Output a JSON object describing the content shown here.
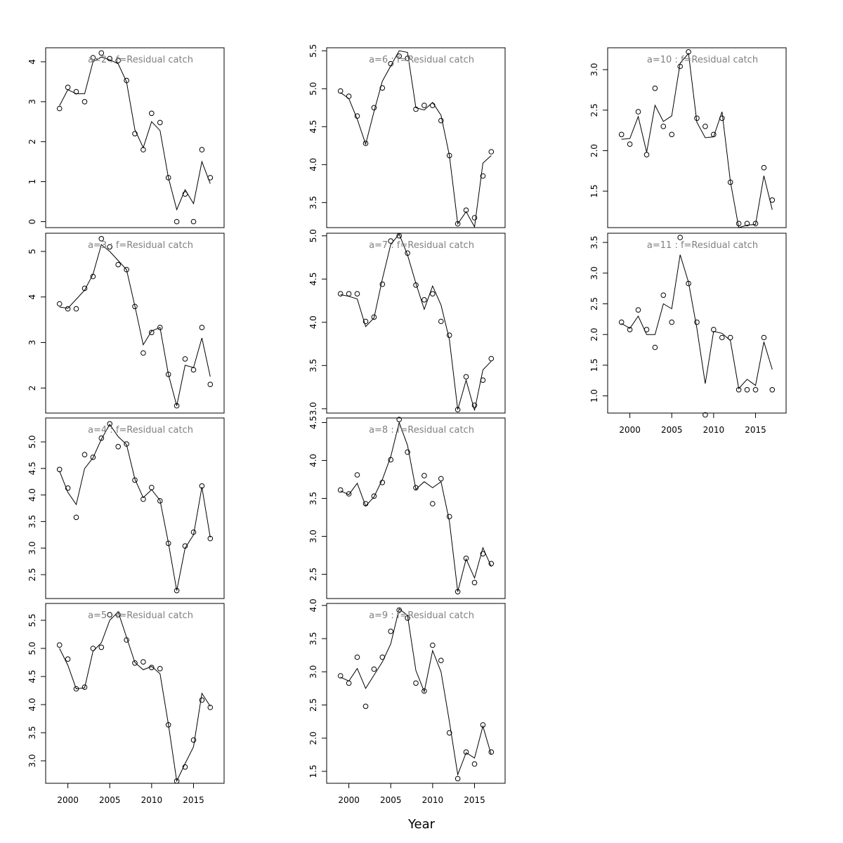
{
  "figure": {
    "xlabel": "Year"
  },
  "chart_data": [
    {
      "type": "scatter",
      "title": "a=2 : f=Residual catch",
      "x": [
        1999,
        2000,
        2001,
        2002,
        2003,
        2004,
        2005,
        2006,
        2007,
        2008,
        2009,
        2010,
        2011,
        2012,
        2013,
        2014,
        2015,
        2016,
        2017
      ],
      "observed": [
        2.83,
        3.36,
        3.25,
        3.0,
        4.1,
        4.22,
        4.08,
        4.03,
        3.53,
        2.2,
        1.8,
        2.71,
        2.48,
        1.1,
        0.0,
        0.69,
        0.0,
        1.8,
        1.1
      ],
      "fitted": [
        2.9,
        3.3,
        3.2,
        3.2,
        4.0,
        4.12,
        4.05,
        3.95,
        3.5,
        2.3,
        1.85,
        2.5,
        2.28,
        1.1,
        0.3,
        0.8,
        0.45,
        1.5,
        0.95
      ],
      "ylim": [
        -0.15,
        4.35
      ],
      "yticks": [
        0,
        1,
        2,
        3,
        4
      ]
    },
    {
      "type": "scatter",
      "title": "a=3 : f=Residual catch",
      "x": [
        1999,
        2000,
        2001,
        2002,
        2003,
        2004,
        2005,
        2006,
        2007,
        2008,
        2009,
        2010,
        2011,
        2012,
        2013,
        2014,
        2015,
        2016,
        2017
      ],
      "observed": [
        3.85,
        3.74,
        3.74,
        4.19,
        4.45,
        5.28,
        5.1,
        4.71,
        4.6,
        3.79,
        2.77,
        3.22,
        3.33,
        2.3,
        1.61,
        2.64,
        2.4,
        3.33,
        2.08
      ],
      "fitted": [
        3.78,
        3.75,
        3.95,
        4.15,
        4.5,
        5.15,
        5.0,
        4.8,
        4.6,
        3.8,
        2.95,
        3.25,
        3.33,
        2.3,
        1.61,
        2.5,
        2.45,
        3.1,
        2.25
      ],
      "ylim": [
        1.45,
        5.4
      ],
      "yticks": [
        2,
        3,
        4,
        5
      ]
    },
    {
      "type": "scatter",
      "title": "a=4 : f=Residual catch",
      "x": [
        1999,
        2000,
        2001,
        2002,
        2003,
        2004,
        2005,
        2006,
        2007,
        2008,
        2009,
        2010,
        2011,
        2012,
        2013,
        2014,
        2015,
        2016,
        2017
      ],
      "observed": [
        4.48,
        4.13,
        3.58,
        4.76,
        4.71,
        5.07,
        5.34,
        4.91,
        4.96,
        4.28,
        3.92,
        4.14,
        3.89,
        3.09,
        2.2,
        3.04,
        3.3,
        4.17,
        3.18
      ],
      "fitted": [
        4.45,
        4.05,
        3.82,
        4.5,
        4.7,
        5.05,
        5.33,
        5.1,
        4.95,
        4.3,
        3.95,
        4.1,
        3.9,
        3.1,
        2.2,
        3.0,
        3.25,
        4.15,
        3.2
      ],
      "ylim": [
        2.05,
        5.45
      ],
      "yticks": [
        2.5,
        3.0,
        3.5,
        4.0,
        4.5,
        5.0
      ]
    },
    {
      "type": "scatter",
      "title": "a=5 : f=Residual catch",
      "x": [
        1999,
        2000,
        2001,
        2002,
        2003,
        2004,
        2005,
        2006,
        2007,
        2008,
        2009,
        2010,
        2011,
        2012,
        2013,
        2014,
        2015,
        2016,
        2017
      ],
      "observed": [
        5.06,
        4.81,
        4.28,
        4.31,
        5.0,
        5.02,
        5.6,
        5.6,
        5.15,
        4.74,
        4.76,
        4.66,
        4.64,
        3.64,
        2.64,
        2.89,
        3.37,
        4.08,
        3.95
      ],
      "fitted": [
        5.0,
        4.7,
        4.28,
        4.3,
        4.95,
        5.1,
        5.5,
        5.65,
        5.2,
        4.75,
        4.62,
        4.68,
        4.55,
        3.65,
        2.64,
        2.95,
        3.25,
        4.2,
        3.97
      ],
      "ylim": [
        2.6,
        5.8
      ],
      "yticks": [
        3.0,
        3.5,
        4.0,
        4.5,
        5.0,
        5.5
      ]
    },
    {
      "type": "scatter",
      "title": "a=6 : f=Residual catch",
      "x": [
        1999,
        2000,
        2001,
        2002,
        2003,
        2004,
        2005,
        2006,
        2007,
        2008,
        2009,
        2010,
        2011,
        2012,
        2013,
        2014,
        2015,
        2016,
        2017
      ],
      "observed": [
        4.97,
        4.9,
        4.64,
        4.28,
        4.75,
        5.01,
        5.33,
        5.43,
        5.4,
        4.73,
        4.78,
        4.78,
        4.58,
        4.12,
        3.22,
        3.4,
        3.3,
        3.85,
        4.17
      ],
      "fitted": [
        4.95,
        4.87,
        4.6,
        4.27,
        4.7,
        5.1,
        5.3,
        5.5,
        5.48,
        4.75,
        4.72,
        4.82,
        4.65,
        4.12,
        3.22,
        3.38,
        3.18,
        4.02,
        4.12
      ],
      "ylim": [
        3.17,
        5.54
      ],
      "yticks": [
        3.5,
        4.0,
        4.5,
        5.0,
        5.5
      ]
    },
    {
      "type": "scatter",
      "title": "a=7 : f=Residual catch",
      "x": [
        1999,
        2000,
        2001,
        2002,
        2003,
        2004,
        2005,
        2006,
        2007,
        2008,
        2009,
        2010,
        2011,
        2012,
        2013,
        2014,
        2015,
        2016,
        2017
      ],
      "observed": [
        4.33,
        4.33,
        4.33,
        4.01,
        4.06,
        4.44,
        4.94,
        5.0,
        4.8,
        4.43,
        4.26,
        4.33,
        4.01,
        3.85,
        2.99,
        3.37,
        3.04,
        3.33,
        3.58
      ],
      "fitted": [
        4.32,
        4.3,
        4.27,
        3.95,
        4.05,
        4.5,
        4.9,
        5.02,
        4.78,
        4.45,
        4.15,
        4.42,
        4.2,
        3.8,
        2.99,
        3.33,
        2.98,
        3.45,
        3.55
      ],
      "ylim": [
        2.95,
        5.03
      ],
      "yticks": [
        3.0,
        3.5,
        4.0,
        4.5,
        5.0
      ]
    },
    {
      "type": "scatter",
      "title": "a=8 : f=Residual catch",
      "x": [
        1999,
        2000,
        2001,
        2002,
        2003,
        2004,
        2005,
        2006,
        2007,
        2008,
        2009,
        2010,
        2011,
        2012,
        2013,
        2014,
        2015,
        2016,
        2017
      ],
      "observed": [
        3.61,
        3.56,
        3.81,
        3.43,
        3.53,
        3.71,
        4.01,
        4.54,
        4.11,
        3.64,
        3.8,
        3.43,
        3.76,
        3.26,
        2.27,
        2.71,
        2.39,
        2.77,
        2.64
      ],
      "fitted": [
        3.6,
        3.55,
        3.7,
        3.4,
        3.52,
        3.75,
        4.05,
        4.5,
        4.2,
        3.62,
        3.72,
        3.64,
        3.72,
        3.2,
        2.27,
        2.7,
        2.45,
        2.85,
        2.6
      ],
      "ylim": [
        2.18,
        4.56
      ],
      "yticks": [
        2.5,
        3.0,
        3.5,
        4.0,
        4.5
      ]
    },
    {
      "type": "scatter",
      "title": "a=9 : f=Residual catch",
      "x": [
        1999,
        2000,
        2001,
        2002,
        2003,
        2004,
        2005,
        2006,
        2007,
        2008,
        2009,
        2010,
        2011,
        2012,
        2013,
        2014,
        2015,
        2016,
        2017
      ],
      "observed": [
        2.94,
        2.83,
        3.22,
        2.48,
        3.04,
        3.22,
        3.61,
        3.93,
        3.81,
        2.83,
        2.71,
        3.4,
        3.17,
        2.08,
        1.39,
        1.79,
        1.61,
        2.2,
        1.79
      ],
      "fitted": [
        2.92,
        2.86,
        3.05,
        2.75,
        2.95,
        3.15,
        3.42,
        3.95,
        3.85,
        3.02,
        2.7,
        3.32,
        3.0,
        2.25,
        1.45,
        1.78,
        1.7,
        2.18,
        1.75
      ],
      "ylim": [
        1.32,
        4.03
      ],
      "yticks": [
        1.5,
        2.0,
        2.5,
        3.0,
        3.5,
        4.0
      ]
    },
    {
      "type": "scatter",
      "title": "a=10 : f=Residual catch",
      "x": [
        1999,
        2000,
        2001,
        2002,
        2003,
        2004,
        2005,
        2006,
        2007,
        2008,
        2009,
        2010,
        2011,
        2012,
        2013,
        2014,
        2015,
        2016,
        2017
      ],
      "observed": [
        2.2,
        2.08,
        2.48,
        1.95,
        2.77,
        2.3,
        2.2,
        3.04,
        3.22,
        2.4,
        2.3,
        2.2,
        2.4,
        1.61,
        1.1,
        1.1,
        1.1,
        1.79,
        1.39
      ],
      "fitted": [
        2.14,
        2.15,
        2.42,
        1.98,
        2.56,
        2.36,
        2.43,
        3.08,
        3.2,
        2.35,
        2.16,
        2.17,
        2.48,
        1.62,
        1.05,
        1.08,
        1.09,
        1.69,
        1.27
      ],
      "ylim": [
        1.05,
        3.27
      ],
      "yticks": [
        1.5,
        2.0,
        2.5,
        3.0
      ]
    },
    {
      "type": "scatter",
      "title": "a=11 : f=Residual catch",
      "x": [
        1999,
        2000,
        2001,
        2002,
        2003,
        2004,
        2005,
        2006,
        2007,
        2008,
        2009,
        2010,
        2011,
        2012,
        2013,
        2014,
        2015,
        2016,
        2017
      ],
      "observed": [
        2.2,
        2.08,
        2.4,
        2.08,
        1.79,
        2.64,
        2.2,
        3.58,
        2.83,
        2.2,
        0.69,
        2.08,
        1.95,
        1.95,
        1.1,
        1.1,
        1.1,
        1.95,
        1.1
      ],
      "fitted": [
        2.18,
        2.1,
        2.3,
        2.0,
        2.0,
        2.5,
        2.42,
        3.3,
        2.85,
        2.1,
        1.2,
        2.05,
        2.02,
        1.9,
        1.12,
        1.27,
        1.17,
        1.88,
        1.43
      ],
      "ylim": [
        0.72,
        3.65
      ],
      "yticks": [
        1.0,
        1.5,
        2.0,
        2.5,
        3.0,
        3.5
      ]
    }
  ]
}
